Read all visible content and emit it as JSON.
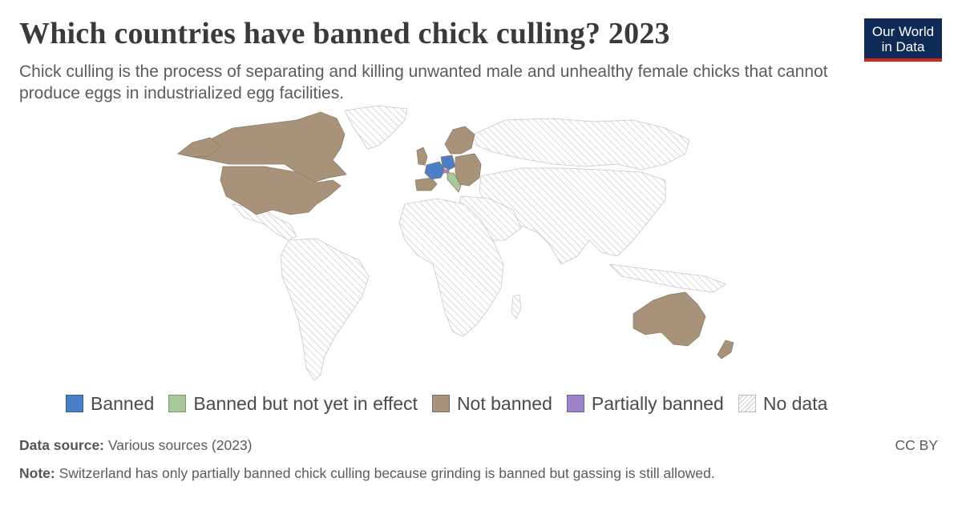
{
  "header": {
    "title": "Which countries have banned chick culling? 2023",
    "subtitle": "Chick culling is the process of separating and killing unwanted male and unhealthy female chicks that cannot produce eggs in industrialized egg facilities.",
    "logo_line1": "Our World",
    "logo_line2": "in Data"
  },
  "colors": {
    "banned": "#4c7ec8",
    "banned_not_yet": "#a8c89a",
    "not_banned": "#a8927a",
    "partially_banned": "#9c82c6",
    "no_data": "hatch-gray"
  },
  "legend": {
    "items": [
      {
        "label": "Banned",
        "color": "#4c7ec8"
      },
      {
        "label": "Banned but not yet in effect",
        "color": "#a8c89a"
      },
      {
        "label": "Not banned",
        "color": "#a8927a"
      },
      {
        "label": "Partially banned",
        "color": "#9c82c6"
      },
      {
        "label": "No data",
        "color": "hatch"
      }
    ]
  },
  "map_data": {
    "status_by_region": {
      "Canada": "Not banned",
      "United States": "Not banned",
      "Australia": "Not banned",
      "New Zealand": "Not banned",
      "France": "Banned",
      "Germany": "Banned",
      "Italy": "Banned but not yet in effect",
      "Switzerland": "Partially banned",
      "Spain": "Not banned",
      "United Kingdom": "Not banned",
      "Scandinavia": "Not banned",
      "Eastern Europe": "Not banned",
      "Rest of world": "No data"
    }
  },
  "footer": {
    "source_label": "Data source:",
    "source_text": "Various sources (2023)",
    "license": "CC BY",
    "note_label": "Note:",
    "note_text": "Switzerland has only partially banned chick culling because grinding is banned but gassing is still allowed."
  }
}
